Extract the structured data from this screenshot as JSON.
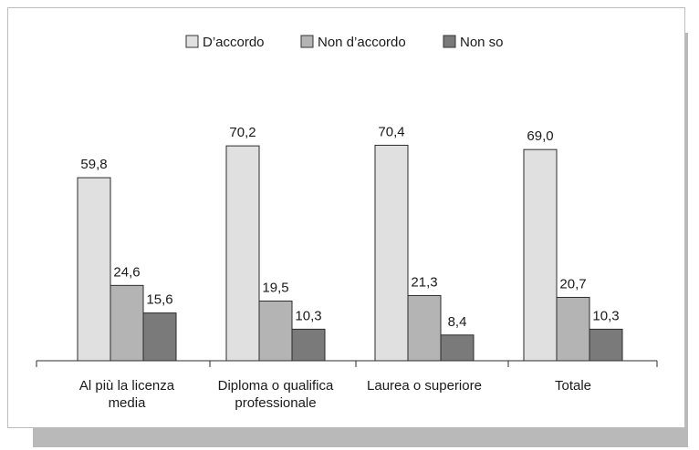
{
  "chart_data": {
    "type": "bar",
    "categories": [
      [
        "Al più la licenza",
        "media"
      ],
      [
        "Diploma o qualifica",
        "professionale"
      ],
      [
        "Laurea o superiore"
      ],
      [
        "Totale"
      ]
    ],
    "series": [
      {
        "name": "D’accordo",
        "color": "#e0e0e0",
        "values": [
          59.8,
          70.2,
          70.4,
          69.0
        ],
        "labels": [
          "59,8",
          "70,2",
          "70,4",
          "69,0"
        ]
      },
      {
        "name": "Non d’accordo",
        "color": "#b4b4b4",
        "values": [
          24.6,
          19.5,
          21.3,
          20.7
        ],
        "labels": [
          "24,6",
          "19,5",
          "21,3",
          "20,7"
        ]
      },
      {
        "name": "Non so",
        "color": "#7a7a7a",
        "values": [
          15.6,
          10.3,
          8.4,
          10.3
        ],
        "labels": [
          "15,6",
          "10,3",
          "8,4",
          "10,3"
        ]
      }
    ],
    "ylim": [
      0,
      80
    ],
    "grid": false,
    "legend_position": "top-center"
  }
}
